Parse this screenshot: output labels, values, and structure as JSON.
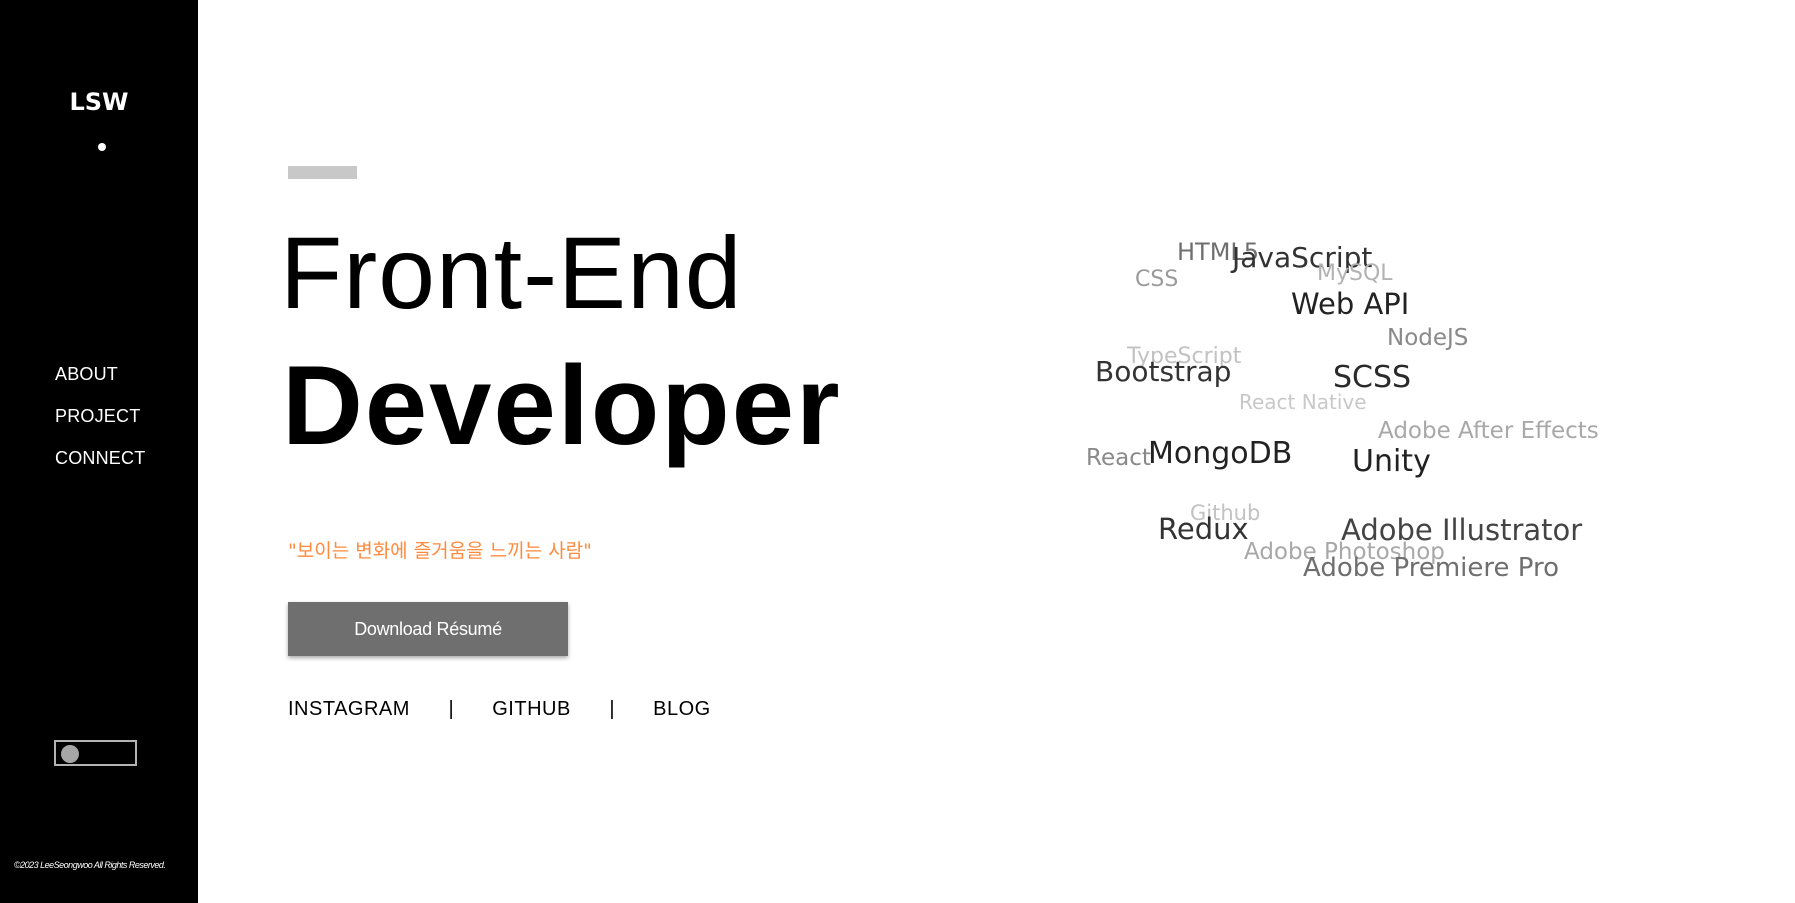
{
  "sidebar": {
    "logo": "LSW",
    "nav": [
      "ABOUT",
      "PROJECT",
      "CONNECT"
    ],
    "copyright": "©2023 LeeSeongwoo All Rights Reserved."
  },
  "hero": {
    "title_line1": "Front-End",
    "title_line2": "Developer",
    "quote": "\"보이는 변화에 즐거움을 느끼는 사람\"",
    "download_label": "Download Résumé",
    "social": {
      "instagram": "INSTAGRAM",
      "github": "GITHUB",
      "blog": "BLOG",
      "separator": "|"
    }
  },
  "skills_cloud": [
    {
      "text": "HTML5"
    },
    {
      "text": "JavaScript"
    },
    {
      "text": "CSS"
    },
    {
      "text": "MySQL"
    },
    {
      "text": "Web API"
    },
    {
      "text": "NodeJS"
    },
    {
      "text": "TypeScript"
    },
    {
      "text": "Bootstrap"
    },
    {
      "text": "SCSS"
    },
    {
      "text": "React Native"
    },
    {
      "text": "Adobe After Effects"
    },
    {
      "text": "React"
    },
    {
      "text": "MongoDB"
    },
    {
      "text": "Unity"
    },
    {
      "text": "Github"
    },
    {
      "text": "Redux"
    },
    {
      "text": "Adobe Illustrator"
    },
    {
      "text": "Adobe Photoshop"
    },
    {
      "text": "Adobe Premiere Pro"
    }
  ],
  "colors": {
    "sidebar_bg": "#000000",
    "accent_quote": "#ff8a3d",
    "button_bg": "#6f6f6f"
  }
}
